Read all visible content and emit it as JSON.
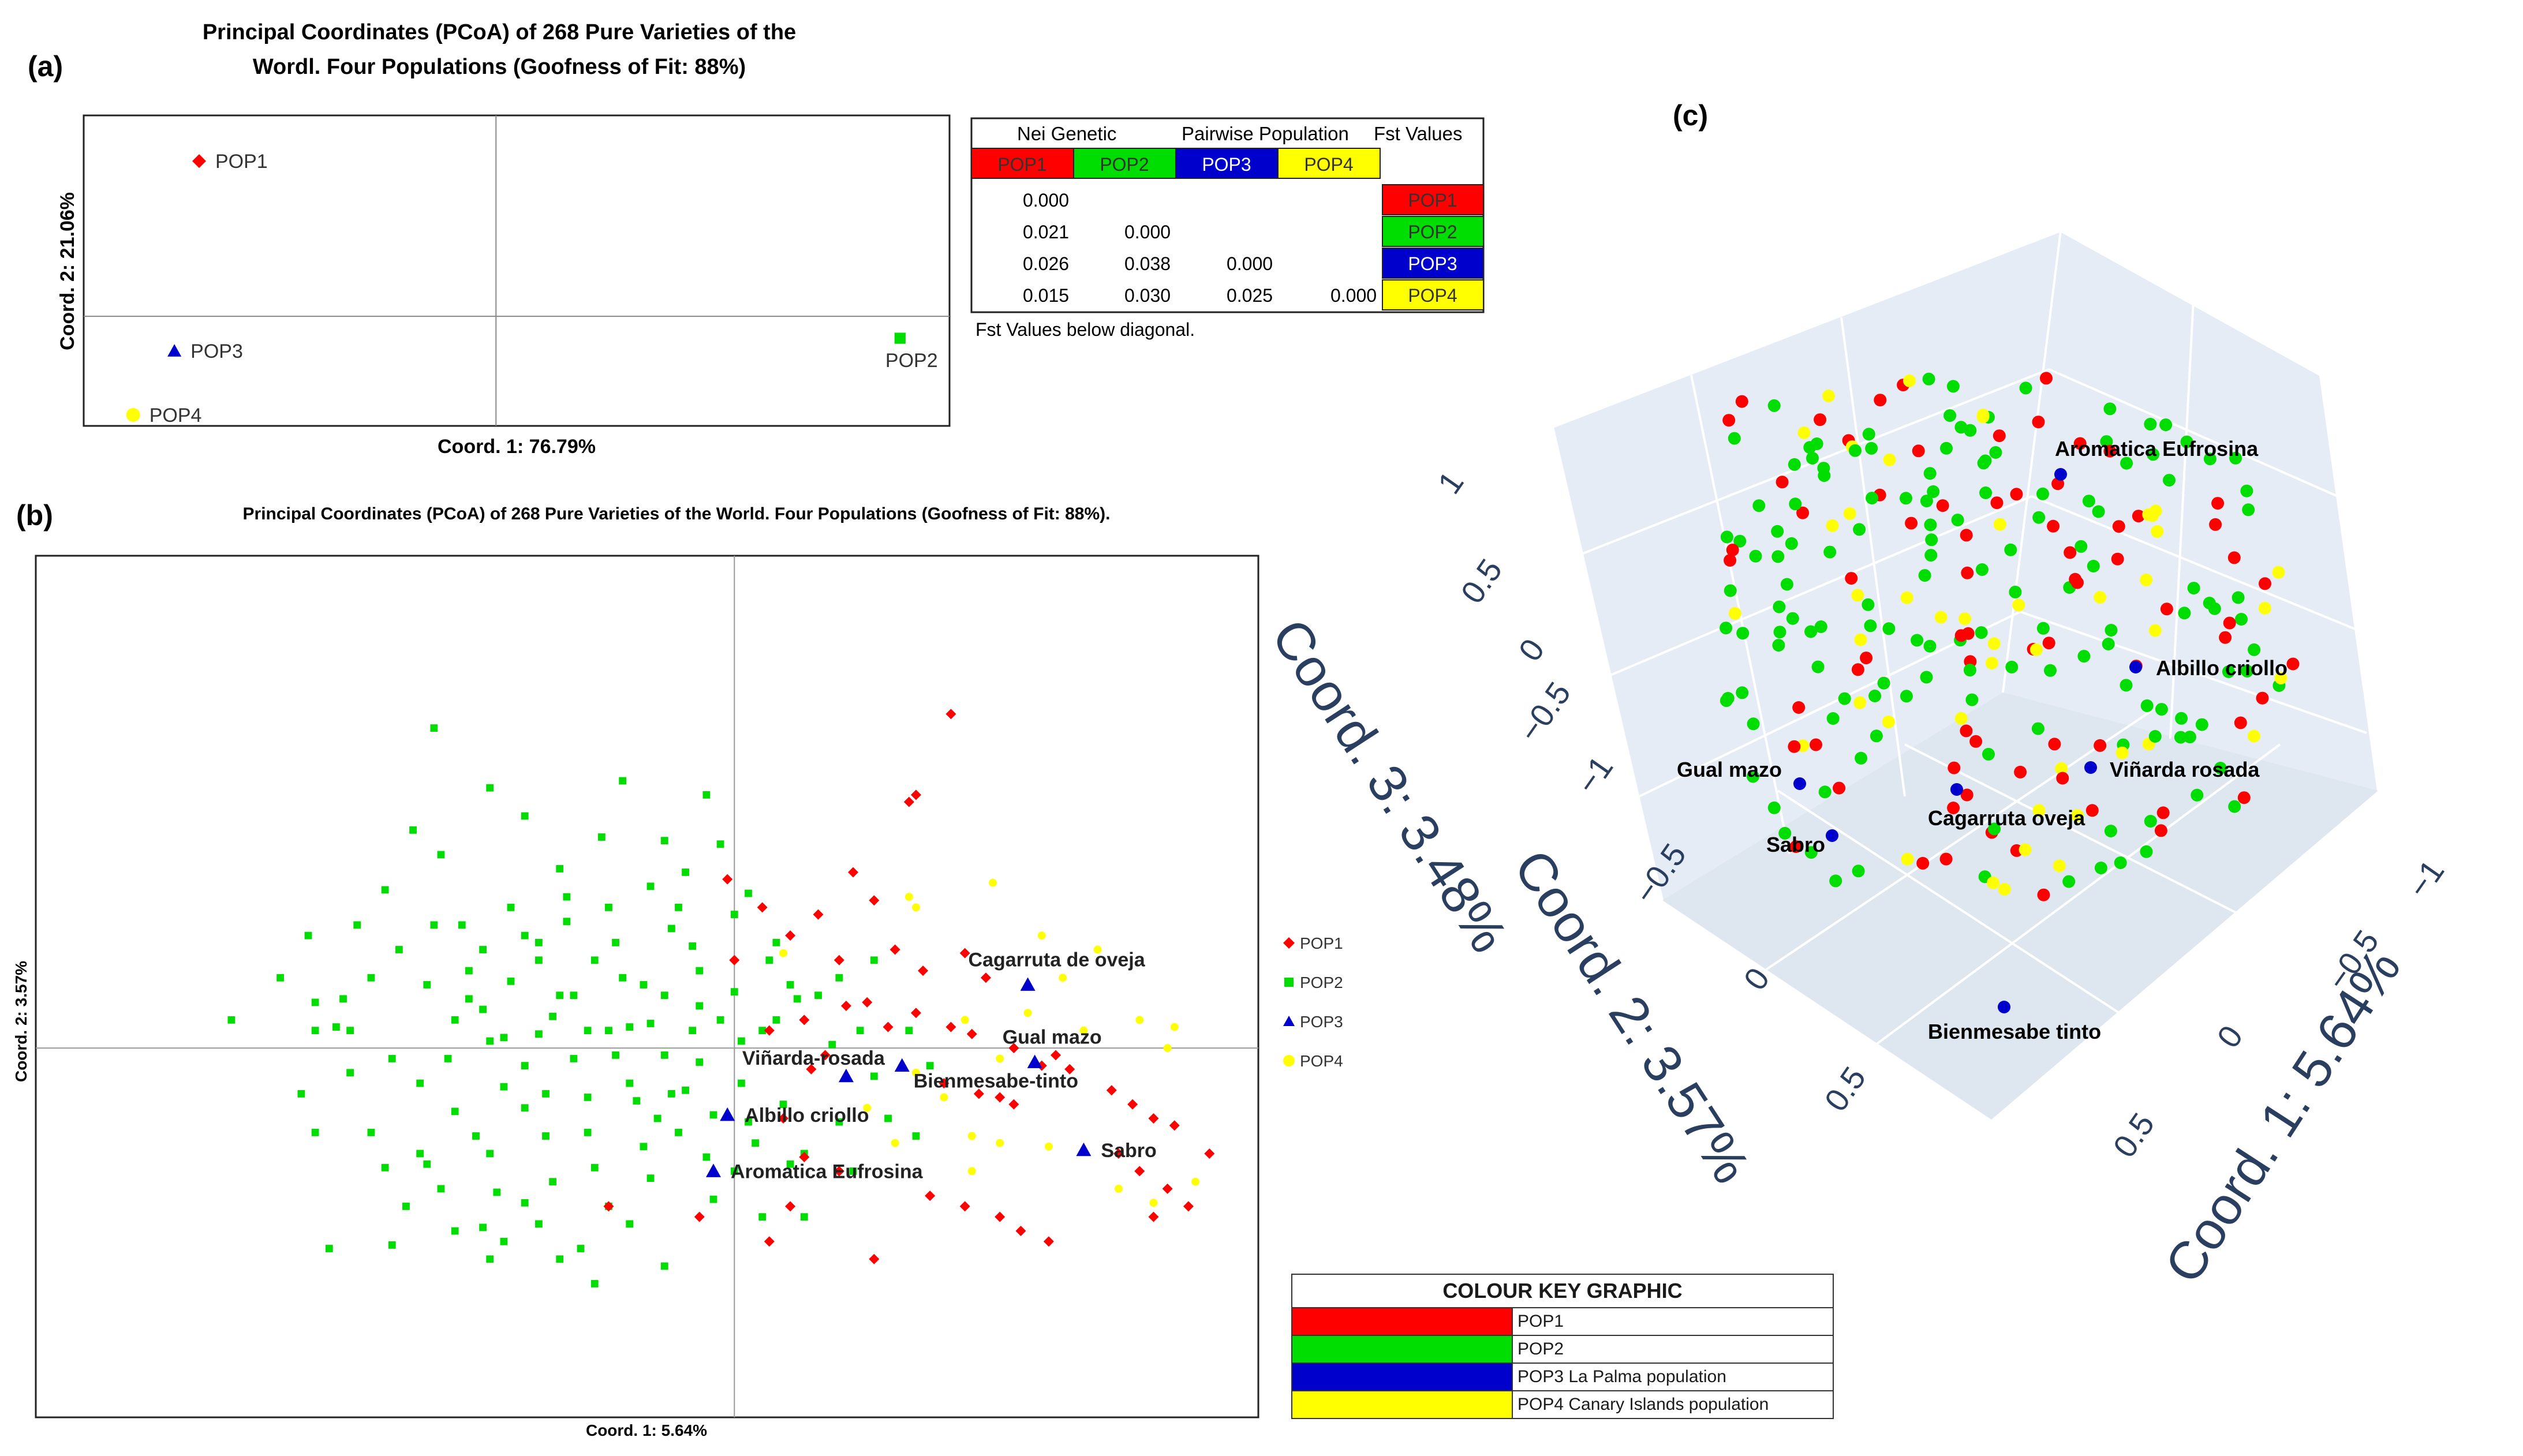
{
  "panel_labels": {
    "a": "(a)",
    "b": "(b)",
    "c": "(c)"
  },
  "colors": {
    "POP1": "#ff0000",
    "POP2": "#00dd00",
    "POP3": "#0000cc",
    "POP4": "#ffff00",
    "scene_bg": "#e5ecf6",
    "axis_text": "#2a3f5f"
  },
  "chart_data": [
    {
      "id": "a",
      "type": "scatter",
      "title_line1": "Principal Coordinates (PCoA) of 268 Pure Varieties of the",
      "title_line2": "Wordl. Four Populations (Goofness of Fit: 88%)",
      "xlabel": "Coord. 1: 76.79%",
      "ylabel": "Coord. 2: 21.06%",
      "xlim": [
        -1,
        1.1
      ],
      "ylim": [
        -0.6,
        1.1
      ],
      "points": [
        {
          "label": "POP1",
          "pop": "POP1",
          "marker": "diamond",
          "x": -0.72,
          "y": 0.85
        },
        {
          "label": "POP2",
          "pop": "POP2",
          "marker": "square",
          "x": 0.98,
          "y": -0.12
        },
        {
          "label": "POP3",
          "pop": "POP3",
          "marker": "triangle",
          "x": -0.78,
          "y": -0.19
        },
        {
          "label": "POP4",
          "pop": "POP4",
          "marker": "circle",
          "x": -0.88,
          "y": -0.54
        }
      ]
    },
    {
      "id": "b",
      "type": "scatter",
      "title": "Principal Coordinates (PCoA) of 268 Pure Varieties of the World. Four Populations (Goofness of Fit: 88%).",
      "xlabel": "Coord. 1: 5.64%",
      "ylabel": "Coord. 2: 3.57%",
      "xlim": [
        -1,
        0.75
      ],
      "ylim": [
        -1.05,
        1.4
      ],
      "legend": [
        "POP1",
        "POP2",
        "POP3",
        "POP4"
      ],
      "labeled_points": [
        {
          "label": "Cagarruta de oveja",
          "x": 0.42,
          "y": 0.18
        },
        {
          "label": "Gual mazo",
          "x": 0.43,
          "y": -0.04
        },
        {
          "label": "Viñarda-rosada",
          "x": 0.16,
          "y": -0.08
        },
        {
          "label": "Bienmesabe-tinto",
          "x": 0.24,
          "y": -0.05
        },
        {
          "label": "Albillo criollo",
          "x": -0.01,
          "y": -0.19
        },
        {
          "label": "Aromatica Eufrosina",
          "x": -0.03,
          "y": -0.35
        },
        {
          "label": "Sabro",
          "x": 0.5,
          "y": -0.29
        }
      ],
      "pop2_points": [
        [
          -0.72,
          0.08
        ],
        [
          -0.6,
          0.13
        ],
        [
          -0.55,
          0.05
        ],
        [
          -0.57,
          0.06
        ],
        [
          -0.62,
          -0.13
        ],
        [
          -0.6,
          -0.24
        ],
        [
          -0.52,
          -0.24
        ],
        [
          -0.5,
          -0.34
        ],
        [
          -0.47,
          -0.45
        ],
        [
          -0.58,
          -0.57
        ],
        [
          -0.49,
          -0.56
        ],
        [
          -0.43,
          0.91
        ],
        [
          -0.42,
          0.55
        ],
        [
          -0.43,
          0.35
        ],
        [
          -0.44,
          -0.33
        ],
        [
          -0.42,
          -0.4
        ],
        [
          -0.4,
          -0.18
        ],
        [
          -0.41,
          -0.03
        ],
        [
          -0.38,
          0.22
        ],
        [
          -0.36,
          0.28
        ],
        [
          -0.38,
          0.14
        ],
        [
          -0.35,
          0.02
        ],
        [
          -0.37,
          -0.25
        ],
        [
          -0.35,
          -0.3
        ],
        [
          -0.34,
          -0.41
        ],
        [
          -0.33,
          -0.55
        ],
        [
          -0.36,
          -0.51
        ],
        [
          -0.36,
          0.11
        ],
        [
          -0.32,
          0.19
        ],
        [
          -0.33,
          -0.11
        ],
        [
          -0.3,
          -0.17
        ],
        [
          -0.3,
          0.32
        ],
        [
          -0.28,
          0.04
        ],
        [
          -0.27,
          -0.13
        ],
        [
          -0.27,
          -0.25
        ],
        [
          -0.26,
          -0.38
        ],
        [
          -0.3,
          -0.44
        ],
        [
          -0.28,
          -0.5
        ],
        [
          -0.25,
          0.15
        ],
        [
          -0.24,
          0.43
        ],
        [
          -0.23,
          -0.03
        ],
        [
          -0.21,
          -0.24
        ],
        [
          -0.2,
          -0.34
        ],
        [
          -0.18,
          -0.45
        ],
        [
          -0.22,
          -0.57
        ],
        [
          -0.2,
          -0.67
        ],
        [
          -0.18,
          0.05
        ],
        [
          -0.16,
          0.2
        ],
        [
          -0.17,
          0.3
        ],
        [
          -0.15,
          -0.1
        ],
        [
          -0.13,
          -0.28
        ],
        [
          -0.12,
          -0.37
        ],
        [
          -0.1,
          0.59
        ],
        [
          -0.12,
          0.07
        ],
        [
          -0.1,
          0.15
        ],
        [
          -0.1,
          -0.02
        ],
        [
          -0.09,
          -0.13
        ],
        [
          -0.08,
          -0.24
        ],
        [
          -0.06,
          0.29
        ],
        [
          -0.05,
          0.12
        ],
        [
          -0.05,
          -0.04
        ],
        [
          -0.04,
          -0.31
        ],
        [
          -0.03,
          -0.43
        ],
        [
          -0.02,
          0.58
        ],
        [
          0,
          0.38
        ],
        [
          0,
          0.16
        ],
        [
          0.01,
          0.02
        ],
        [
          0.02,
          -0.21
        ],
        [
          0.03,
          -0.27
        ],
        [
          0.04,
          -0.48
        ],
        [
          0.05,
          0.25
        ],
        [
          0.06,
          0.08
        ],
        [
          0.07,
          -0.16
        ],
        [
          0.08,
          -0.33
        ],
        [
          0.1,
          -0.48
        ],
        [
          0.12,
          0.15
        ],
        [
          0.14,
          0.01
        ],
        [
          0.15,
          -0.21
        ],
        [
          0.17,
          -0.35
        ],
        [
          0.2,
          -0.08
        ],
        [
          0.22,
          -0.2
        ],
        [
          -0.46,
          0.62
        ],
        [
          -0.5,
          0.45
        ],
        [
          -0.54,
          0.35
        ],
        [
          -0.35,
          0.74
        ],
        [
          -0.3,
          0.66
        ],
        [
          -0.25,
          0.51
        ],
        [
          -0.24,
          0.36
        ],
        [
          -0.2,
          0.25
        ],
        [
          -0.18,
          0.4
        ],
        [
          -0.28,
          0.25
        ],
        [
          -0.23,
          0.15
        ],
        [
          -0.15,
          0.06
        ],
        [
          -0.08,
          0.4
        ],
        [
          -0.09,
          0.34
        ],
        [
          -0.12,
          0.46
        ],
        [
          -0.05,
          0.22
        ],
        [
          -0.02,
          0.08
        ],
        [
          0.02,
          0.44
        ],
        [
          0.06,
          0.3
        ],
        [
          0.09,
          0.14
        ],
        [
          -0.65,
          0.2
        ],
        [
          -0.45,
          -0.1
        ],
        [
          -0.4,
          0.08
        ],
        [
          -0.33,
          0.03
        ],
        [
          -0.3,
          -0.05
        ],
        [
          -0.26,
          0.09
        ],
        [
          -0.21,
          -0.14
        ],
        [
          -0.17,
          -0.02
        ],
        [
          -0.13,
          0.18
        ],
        [
          -0.11,
          -0.2
        ],
        [
          -0.07,
          -0.12
        ],
        [
          -0.03,
          -0.19
        ],
        [
          0.01,
          -0.1
        ],
        [
          0.04,
          0.05
        ],
        [
          -0.55,
          -0.07
        ],
        [
          -0.48,
          0.28
        ],
        [
          -0.52,
          0.2
        ],
        [
          -0.6,
          0.05
        ],
        [
          -0.44,
          0.18
        ],
        [
          -0.32,
          0.4
        ],
        [
          -0.28,
          0.3
        ],
        [
          -0.21,
          0.05
        ],
        [
          -0.14,
          -0.15
        ],
        [
          -0.06,
          0.05
        ],
        [
          0.0,
          -0.35
        ],
        [
          0.08,
          0.18
        ],
        [
          -0.19,
          0.6
        ],
        [
          -0.25,
          -0.6
        ],
        [
          -0.35,
          -0.6
        ],
        [
          -0.15,
          -0.5
        ],
        [
          -0.1,
          -0.62
        ],
        [
          0.1,
          -0.3
        ],
        [
          0.15,
          0.2
        ],
        [
          0.18,
          0.05
        ],
        [
          0.2,
          0.25
        ],
        [
          0.25,
          0.05
        ],
        [
          0.28,
          -0.05
        ],
        [
          0.26,
          -0.25
        ],
        [
          -0.4,
          -0.52
        ],
        [
          -0.45,
          -0.3
        ],
        [
          -0.39,
          0.35
        ],
        [
          -0.16,
          0.76
        ],
        [
          -0.04,
          0.72
        ],
        [
          -0.07,
          0.5
        ],
        [
          -0.49,
          -0.03
        ],
        [
          -0.56,
          0.14
        ],
        [
          -0.61,
          0.32
        ]
      ],
      "pop1_points": [
        [
          0.31,
          0.95
        ],
        [
          0.26,
          0.72
        ],
        [
          0.25,
          0.7
        ],
        [
          0.17,
          0.5
        ],
        [
          0.2,
          0.42
        ],
        [
          0.12,
          0.38
        ],
        [
          0.08,
          0.32
        ],
        [
          -0.01,
          0.48
        ],
        [
          0.15,
          0.25
        ],
        [
          0.23,
          0.28
        ],
        [
          0.27,
          0.22
        ],
        [
          0.33,
          0.27
        ],
        [
          0.36,
          0.2
        ],
        [
          0.16,
          0.12
        ],
        [
          0.1,
          0.08
        ],
        [
          0.05,
          0.05
        ],
        [
          0.13,
          -0.02
        ],
        [
          0.22,
          0.06
        ],
        [
          0.26,
          0.1
        ],
        [
          0.31,
          0.06
        ],
        [
          0.34,
          0.04
        ],
        [
          0.4,
          0.0
        ],
        [
          0.44,
          -0.05
        ],
        [
          0.48,
          -0.06
        ],
        [
          0.3,
          -0.1
        ],
        [
          0.35,
          -0.13
        ],
        [
          0.38,
          -0.14
        ],
        [
          0.4,
          -0.16
        ],
        [
          0.46,
          -0.02
        ],
        [
          0.54,
          -0.12
        ],
        [
          0.57,
          -0.16
        ],
        [
          0.6,
          -0.2
        ],
        [
          0.63,
          -0.22
        ],
        [
          0.55,
          -0.3
        ],
        [
          0.58,
          -0.35
        ],
        [
          0.62,
          -0.4
        ],
        [
          0.6,
          -0.48
        ],
        [
          0.65,
          -0.45
        ],
        [
          0.68,
          -0.3
        ],
        [
          0.28,
          -0.42
        ],
        [
          0.33,
          -0.45
        ],
        [
          0.38,
          -0.48
        ],
        [
          0.41,
          -0.52
        ],
        [
          0.45,
          -0.55
        ],
        [
          0.1,
          -0.31
        ],
        [
          0.15,
          -0.35
        ],
        [
          0.08,
          -0.45
        ],
        [
          0.05,
          -0.55
        ],
        [
          0.2,
          -0.6
        ],
        [
          -0.05,
          -0.48
        ],
        [
          -0.18,
          -0.45
        ],
        [
          0.0,
          0.25
        ],
        [
          0.04,
          0.4
        ],
        [
          0.19,
          0.13
        ],
        [
          0.11,
          -0.06
        ],
        [
          0.07,
          -0.2
        ]
      ],
      "pop4_points": [
        [
          0.37,
          0.47
        ],
        [
          0.26,
          0.4
        ],
        [
          0.44,
          0.32
        ],
        [
          0.47,
          0.2
        ],
        [
          0.52,
          0.28
        ],
        [
          0.5,
          0.05
        ],
        [
          0.58,
          0.08
        ],
        [
          0.63,
          0.06
        ],
        [
          0.33,
          0.08
        ],
        [
          0.38,
          -0.03
        ],
        [
          0.42,
          0.1
        ],
        [
          0.26,
          -0.07
        ],
        [
          0.3,
          -0.14
        ],
        [
          0.34,
          -0.25
        ],
        [
          0.38,
          -0.27
        ],
        [
          0.45,
          -0.28
        ],
        [
          0.55,
          -0.4
        ],
        [
          0.6,
          -0.44
        ],
        [
          0.66,
          -0.38
        ],
        [
          0.62,
          0.0
        ],
        [
          0.19,
          -0.17
        ],
        [
          0.23,
          -0.27
        ],
        [
          0.34,
          -0.35
        ],
        [
          0.25,
          0.43
        ],
        [
          0.07,
          0.27
        ]
      ]
    },
    {
      "id": "c",
      "type": "scatter3d",
      "x_title": "Coord. 1: 5.64%",
      "y_title": "Coord. 2: 3.57%",
      "z_title": "Coord. 3: 3.48%",
      "ticks_z": [
        "1",
        "0.5",
        "0",
        "−0.5",
        "−1"
      ],
      "ticks_y": [
        "−0.5",
        "0",
        "0.5"
      ],
      "ticks_x": [
        "−1",
        "−0.5",
        "0",
        "0.5"
      ],
      "labeled_points": [
        {
          "label": "Aromatica Eufrosina",
          "pop": "POP3"
        },
        {
          "label": "Albillo criollo",
          "pop": "POP3"
        },
        {
          "label": "Gual mazo",
          "pop": "POP3"
        },
        {
          "label": "Viñarda rosada",
          "pop": "POP3"
        },
        {
          "label": "Sabro",
          "pop": "POP3"
        },
        {
          "label": "Cagarruta oveja",
          "pop": "POP3"
        },
        {
          "label": "Bienmesabe tinto",
          "pop": "POP3"
        }
      ]
    }
  ],
  "fst_table": {
    "title_parts": [
      "Nei Genetic",
      "Pairwise Population",
      "Fst Values"
    ],
    "headers": [
      "POP1",
      "POP2",
      "POP3",
      "POP4"
    ],
    "rows": [
      {
        "values": [
          "0.000",
          "",
          "",
          ""
        ],
        "label": "POP1"
      },
      {
        "values": [
          "0.021",
          "0.000",
          "",
          ""
        ],
        "label": "POP2"
      },
      {
        "values": [
          "0.026",
          "0.038",
          "0.000",
          ""
        ],
        "label": "POP3"
      },
      {
        "values": [
          "0.015",
          "0.030",
          "0.025",
          "0.000"
        ],
        "label": "POP4"
      }
    ],
    "note": "Fst Values below diagonal."
  },
  "colour_key": {
    "title": "COLOUR KEY GRAPHIC",
    "rows": [
      {
        "pop": "POP1",
        "text": "POP1"
      },
      {
        "pop": "POP2",
        "text": "POP2"
      },
      {
        "pop": "POP3",
        "text": "POP3 La Palma population"
      },
      {
        "pop": "POP4",
        "text": "POP4 Canary Islands population"
      }
    ]
  }
}
